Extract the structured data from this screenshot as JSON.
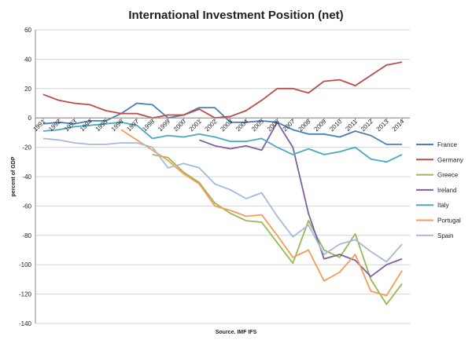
{
  "chart_data": {
    "type": "line",
    "title": "International Investment Position (net)",
    "ylabel": "percent of GDP",
    "xlabel": "",
    "source_note": "Source. IMF IFS",
    "ylim": [
      -140,
      60
    ],
    "yticks": [
      60,
      40,
      20,
      0,
      -20,
      -40,
      -60,
      -80,
      -100,
      -120,
      -140
    ],
    "grid": "horizontal",
    "legend_position": "right",
    "categories": [
      "1991",
      "1992",
      "1993",
      "1994",
      "1995",
      "1996",
      "1997",
      "1998",
      "1999",
      "2000",
      "2001",
      "2002",
      "2003",
      "2004",
      "2005",
      "2006",
      "2007",
      "2008",
      "2009",
      "2010",
      "2011",
      "2012",
      "2013",
      "2014"
    ],
    "series": [
      {
        "name": "France",
        "color": "#4a7ebb",
        "values": [
          -4,
          -3,
          -4,
          -2,
          -2,
          3,
          10,
          9,
          0,
          2,
          7,
          7,
          -3,
          -3,
          -2,
          -3,
          -8,
          -11,
          -11,
          -13,
          -9,
          -12,
          -18,
          -18
        ]
      },
      {
        "name": "Germany",
        "color": "#be4b48",
        "values": [
          16,
          12,
          10,
          9,
          5,
          3,
          3,
          0,
          2,
          2,
          6,
          0,
          1,
          5,
          12,
          20,
          20,
          17,
          25,
          26,
          22,
          29,
          36,
          38
        ]
      },
      {
        "name": "Greece",
        "color": "#98b954",
        "values": [
          null,
          null,
          null,
          null,
          null,
          null,
          null,
          -25,
          -27,
          -37,
          -44,
          -58,
          -65,
          -70,
          -71,
          -85,
          -99,
          -70,
          -90,
          -95,
          -79,
          -110,
          -127,
          -113
        ]
      },
      {
        "name": "Ireland",
        "color": "#7d60a0",
        "values": [
          null,
          null,
          null,
          null,
          null,
          null,
          null,
          null,
          null,
          null,
          -15,
          -19,
          -21,
          -19,
          -22,
          -3,
          -20,
          -65,
          -96,
          -93,
          -97,
          -108,
          -100,
          -96
        ]
      },
      {
        "name": "Italy",
        "color": "#46aac5",
        "values": [
          -9,
          -8,
          -6,
          -5,
          -4,
          -3,
          -5,
          -14,
          -12,
          -13,
          -11,
          -13,
          -16,
          -16,
          -14,
          -20,
          -25,
          -21,
          -25,
          -23,
          -20,
          -28,
          -30,
          -25
        ]
      },
      {
        "name": "Portugal",
        "color": "#f59d56",
        "values": [
          null,
          null,
          null,
          null,
          null,
          -8,
          -15,
          -22,
          -29,
          -38,
          -45,
          -60,
          -63,
          -67,
          -66,
          -80,
          -95,
          -90,
          -111,
          -105,
          -93,
          -118,
          -121,
          -104
        ]
      },
      {
        "name": "Spain",
        "color": "#a5b9db",
        "values": [
          -14,
          -15,
          -17,
          -18,
          -18,
          -17,
          -17,
          -20,
          -34,
          -31,
          -34,
          -45,
          -49,
          -55,
          -51,
          -67,
          -81,
          -73,
          -93,
          -86,
          -83,
          -91,
          -98,
          -86
        ]
      }
    ]
  }
}
